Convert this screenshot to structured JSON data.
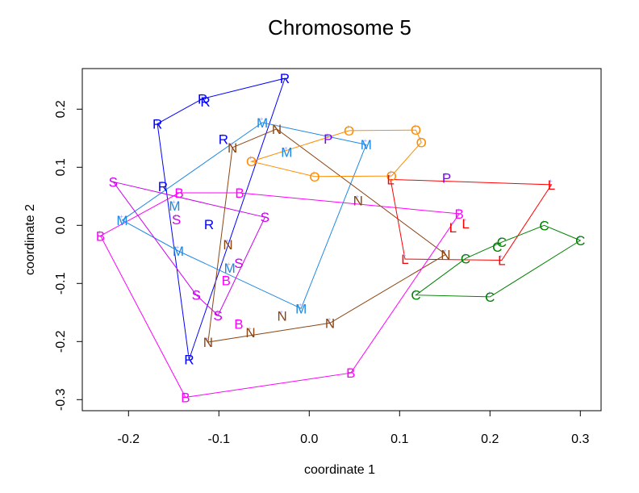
{
  "chart_data": {
    "type": "scatter",
    "title": "Chromosome 5",
    "xlabel": "coordinate 1",
    "ylabel": "coordinate 2",
    "xlim": [
      -0.25,
      0.33
    ],
    "ylim": [
      -0.325,
      0.27
    ],
    "xticks": [
      -0.2,
      -0.1,
      0.0,
      0.1,
      0.2,
      0.3
    ],
    "xtick_labels": [
      "-0.2",
      "-0.1",
      "0.0",
      "0.1",
      "0.2",
      "0.3"
    ],
    "yticks": [
      -0.3,
      -0.2,
      -0.1,
      0.0,
      0.1,
      0.2
    ],
    "ytick_labels": [
      "-0.3",
      "-0.2",
      "-0.1",
      "0.0",
      "0.1",
      "0.2"
    ],
    "grid": false,
    "legend": "none",
    "series": [
      {
        "name": "R",
        "color": "#0000FF",
        "points": [
          [
            -0.027,
            0.253
          ],
          [
            -0.118,
            0.218
          ],
          [
            -0.115,
            0.213
          ],
          [
            -0.168,
            0.175
          ],
          [
            -0.095,
            0.148
          ],
          [
            -0.162,
            0.067
          ],
          [
            -0.111,
            0.002
          ],
          [
            -0.133,
            -0.231
          ]
        ],
        "hull": [
          [
            -0.168,
            0.175
          ],
          [
            -0.118,
            0.218
          ],
          [
            -0.027,
            0.253
          ],
          [
            -0.133,
            -0.231
          ]
        ]
      },
      {
        "name": "M",
        "color": "#1E88E5",
        "points": [
          [
            -0.052,
            0.177
          ],
          [
            -0.025,
            0.126
          ],
          [
            0.063,
            0.139
          ],
          [
            -0.149,
            0.034
          ],
          [
            -0.207,
            0.009
          ],
          [
            -0.145,
            -0.044
          ],
          [
            -0.088,
            -0.073
          ],
          [
            -0.009,
            -0.143
          ]
        ],
        "hull": [
          [
            -0.207,
            0.009
          ],
          [
            -0.052,
            0.177
          ],
          [
            0.063,
            0.139
          ],
          [
            -0.009,
            -0.143
          ],
          [
            -0.145,
            -0.044
          ]
        ]
      },
      {
        "name": "N",
        "color": "#8B4513",
        "points": [
          [
            -0.036,
            0.166
          ],
          [
            -0.085,
            0.134
          ],
          [
            0.054,
            0.043
          ],
          [
            -0.09,
            -0.033
          ],
          [
            0.151,
            -0.05
          ],
          [
            -0.03,
            -0.156
          ],
          [
            0.023,
            -0.168
          ],
          [
            -0.065,
            -0.184
          ],
          [
            -0.112,
            -0.201
          ]
        ],
        "hull": [
          [
            -0.085,
            0.134
          ],
          [
            -0.036,
            0.166
          ],
          [
            0.151,
            -0.05
          ],
          [
            0.023,
            -0.168
          ],
          [
            -0.112,
            -0.201
          ]
        ]
      },
      {
        "name": "O",
        "color": "#FF8C00",
        "points": [
          [
            -0.064,
            0.11
          ],
          [
            0.044,
            0.163
          ],
          [
            0.118,
            0.164
          ],
          [
            0.124,
            0.143
          ],
          [
            0.006,
            0.084
          ],
          [
            0.091,
            0.085
          ]
        ],
        "hull": [
          [
            -0.064,
            0.11
          ],
          [
            0.044,
            0.163
          ],
          [
            0.118,
            0.164
          ],
          [
            0.124,
            0.143
          ],
          [
            0.091,
            0.085
          ],
          [
            0.006,
            0.084
          ]
        ]
      },
      {
        "name": "P",
        "color": "#8000FF",
        "points": [
          [
            0.021,
            0.149
          ],
          [
            0.152,
            0.082
          ]
        ],
        "hull": []
      },
      {
        "name": "L",
        "color": "#FF0000",
        "points": [
          [
            0.09,
            0.079
          ],
          [
            0.268,
            0.07
          ],
          [
            0.159,
            -0.004
          ],
          [
            0.173,
            0.003
          ],
          [
            0.106,
            -0.058
          ],
          [
            0.213,
            -0.06
          ]
        ],
        "hull": [
          [
            0.09,
            0.079
          ],
          [
            0.268,
            0.07
          ],
          [
            0.213,
            -0.06
          ],
          [
            0.106,
            -0.058
          ]
        ]
      },
      {
        "name": "C",
        "color": "#008000",
        "points": [
          [
            0.173,
            -0.057
          ],
          [
            0.208,
            -0.037
          ],
          [
            0.213,
            -0.029
          ],
          [
            0.26,
            0.0
          ],
          [
            0.3,
            -0.026
          ],
          [
            0.118,
            -0.12
          ],
          [
            0.2,
            -0.123
          ]
        ],
        "hull": [
          [
            0.118,
            -0.12
          ],
          [
            0.173,
            -0.057
          ],
          [
            0.213,
            -0.029
          ],
          [
            0.26,
            0.0
          ],
          [
            0.3,
            -0.026
          ],
          [
            0.2,
            -0.123
          ]
        ]
      },
      {
        "name": "B",
        "color": "#FF00FF",
        "points": [
          [
            -0.144,
            0.056
          ],
          [
            -0.077,
            0.056
          ],
          [
            0.166,
            0.02
          ],
          [
            -0.231,
            -0.018
          ],
          [
            -0.092,
            -0.095
          ],
          [
            -0.078,
            -0.17
          ],
          [
            0.046,
            -0.254
          ],
          [
            -0.137,
            -0.296
          ]
        ],
        "hull": [
          [
            -0.144,
            0.056
          ],
          [
            -0.077,
            0.056
          ],
          [
            0.166,
            0.02
          ],
          [
            0.046,
            -0.254
          ],
          [
            -0.137,
            -0.296
          ],
          [
            -0.231,
            -0.018
          ]
        ]
      },
      {
        "name": "S",
        "color": "#CC00EE",
        "points": [
          [
            -0.217,
            0.075
          ],
          [
            -0.147,
            0.01
          ],
          [
            -0.049,
            0.014
          ],
          [
            -0.078,
            -0.065
          ],
          [
            -0.125,
            -0.12
          ],
          [
            -0.101,
            -0.155
          ]
        ],
        "hull": [
          [
            -0.217,
            0.075
          ],
          [
            -0.049,
            0.014
          ],
          [
            -0.101,
            -0.155
          ],
          [
            -0.125,
            -0.12
          ]
        ]
      }
    ]
  }
}
